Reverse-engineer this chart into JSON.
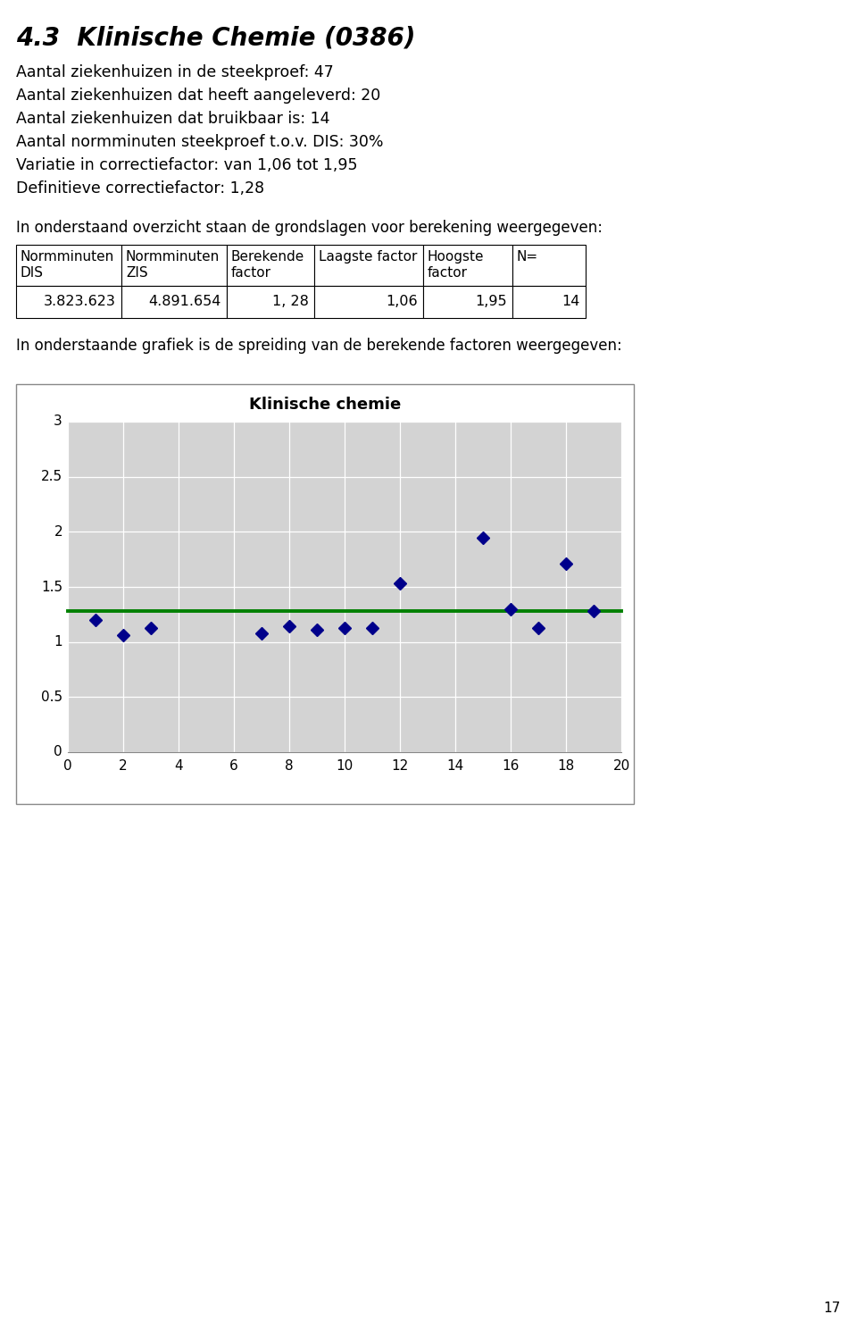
{
  "title": "4.3  Klinische Chemie (0386)",
  "info_lines": [
    "Aantal ziekenhuizen in de steekproef: 47",
    "Aantal ziekenhuizen dat heeft aangeleverd: 20",
    "Aantal ziekenhuizen dat bruikbaar is: 14",
    "Aantal normminuten steekproef t.o.v. DIS: 30%",
    "Variatie in correctiefactor: van 1,06 tot 1,95",
    "Definitieve correctiefactor: 1,28"
  ],
  "table_intro": "In onderstaand overzicht staan de grondslagen voor berekening weergegeven:",
  "table_headers_row1": [
    "Normminuten",
    "Normminuten",
    "Berekende",
    "Laagste factor",
    "Hoogste",
    "N="
  ],
  "table_headers_row2": [
    "DIS",
    "ZIS",
    "factor",
    "",
    "factor",
    ""
  ],
  "table_data": [
    "3.823.623",
    "4.891.654",
    "1, 28",
    "1,06",
    "1,95",
    "14"
  ],
  "graph_intro": "In onderstaande grafiek is de spreiding van de berekende factoren weergegeven:",
  "chart_title": "Klinische chemie",
  "scatter_x": [
    1,
    2,
    3,
    7,
    8,
    9,
    10,
    11,
    12,
    15,
    16,
    17,
    18,
    19
  ],
  "scatter_y": [
    1.2,
    1.06,
    1.13,
    1.08,
    1.14,
    1.11,
    1.13,
    1.13,
    1.53,
    1.95,
    1.3,
    1.13,
    1.71,
    1.28
  ],
  "hline_y": 1.28,
  "hline_color": "#008000",
  "scatter_color": "#00008B",
  "xlim": [
    0,
    20
  ],
  "ylim": [
    0,
    3
  ],
  "xticks": [
    0,
    2,
    4,
    6,
    8,
    10,
    12,
    14,
    16,
    18,
    20
  ],
  "yticks": [
    0,
    0.5,
    1,
    1.5,
    2,
    2.5,
    3
  ],
  "page_number": "17",
  "plot_area_color": "#D3D3D3"
}
